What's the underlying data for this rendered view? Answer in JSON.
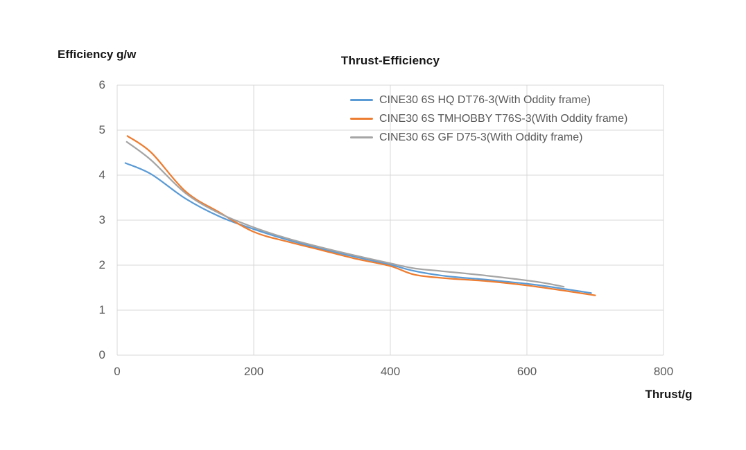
{
  "chart_data": {
    "type": "line",
    "title": "Thrust-Efficiency",
    "y_axis_title": "Efficiency g/w",
    "x_axis_title": "Thrust/g",
    "xlabel": "Thrust/g",
    "ylabel": "Efficiency g/w",
    "xlim": [
      0,
      800
    ],
    "ylim": [
      0,
      6
    ],
    "x_ticks": [
      0,
      200,
      400,
      600,
      800
    ],
    "y_ticks": [
      0,
      1,
      2,
      3,
      4,
      5,
      6
    ],
    "grid": true,
    "legend_position": "inside-top-center",
    "series": [
      {
        "name": "CINE30 6S HQ DT76-3(With Oddity frame)",
        "color": "#5B9BD5",
        "points": [
          [
            12,
            4.27
          ],
          [
            50,
            4.02
          ],
          [
            100,
            3.48
          ],
          [
            150,
            3.08
          ],
          [
            200,
            2.8
          ],
          [
            250,
            2.56
          ],
          [
            300,
            2.36
          ],
          [
            350,
            2.18
          ],
          [
            400,
            2.01
          ],
          [
            435,
            1.87
          ],
          [
            480,
            1.76
          ],
          [
            545,
            1.67
          ],
          [
            615,
            1.56
          ],
          [
            694,
            1.38
          ]
        ]
      },
      {
        "name": "CINE30 6S TMHOBBY T76S-3(With Oddity frame)",
        "color": "#ED7D31",
        "points": [
          [
            15,
            4.87
          ],
          [
            50,
            4.5
          ],
          [
            100,
            3.64
          ],
          [
            150,
            3.17
          ],
          [
            200,
            2.74
          ],
          [
            250,
            2.52
          ],
          [
            300,
            2.33
          ],
          [
            350,
            2.14
          ],
          [
            400,
            1.98
          ],
          [
            435,
            1.79
          ],
          [
            480,
            1.71
          ],
          [
            545,
            1.64
          ],
          [
            615,
            1.52
          ],
          [
            700,
            1.33
          ]
        ]
      },
      {
        "name": "CINE30 6S GF D75-3(With Oddity frame)",
        "color": "#A5A5A5",
        "points": [
          [
            14,
            4.74
          ],
          [
            50,
            4.33
          ],
          [
            100,
            3.6
          ],
          [
            150,
            3.15
          ],
          [
            200,
            2.84
          ],
          [
            250,
            2.59
          ],
          [
            300,
            2.39
          ],
          [
            350,
            2.21
          ],
          [
            400,
            2.04
          ],
          [
            435,
            1.93
          ],
          [
            480,
            1.86
          ],
          [
            545,
            1.76
          ],
          [
            615,
            1.63
          ],
          [
            654,
            1.52
          ]
        ]
      }
    ],
    "style": {
      "grid_color": "#D9D9D9",
      "tick_text_color": "#595959",
      "title_color": "#151515",
      "line_width": 2.25
    }
  }
}
